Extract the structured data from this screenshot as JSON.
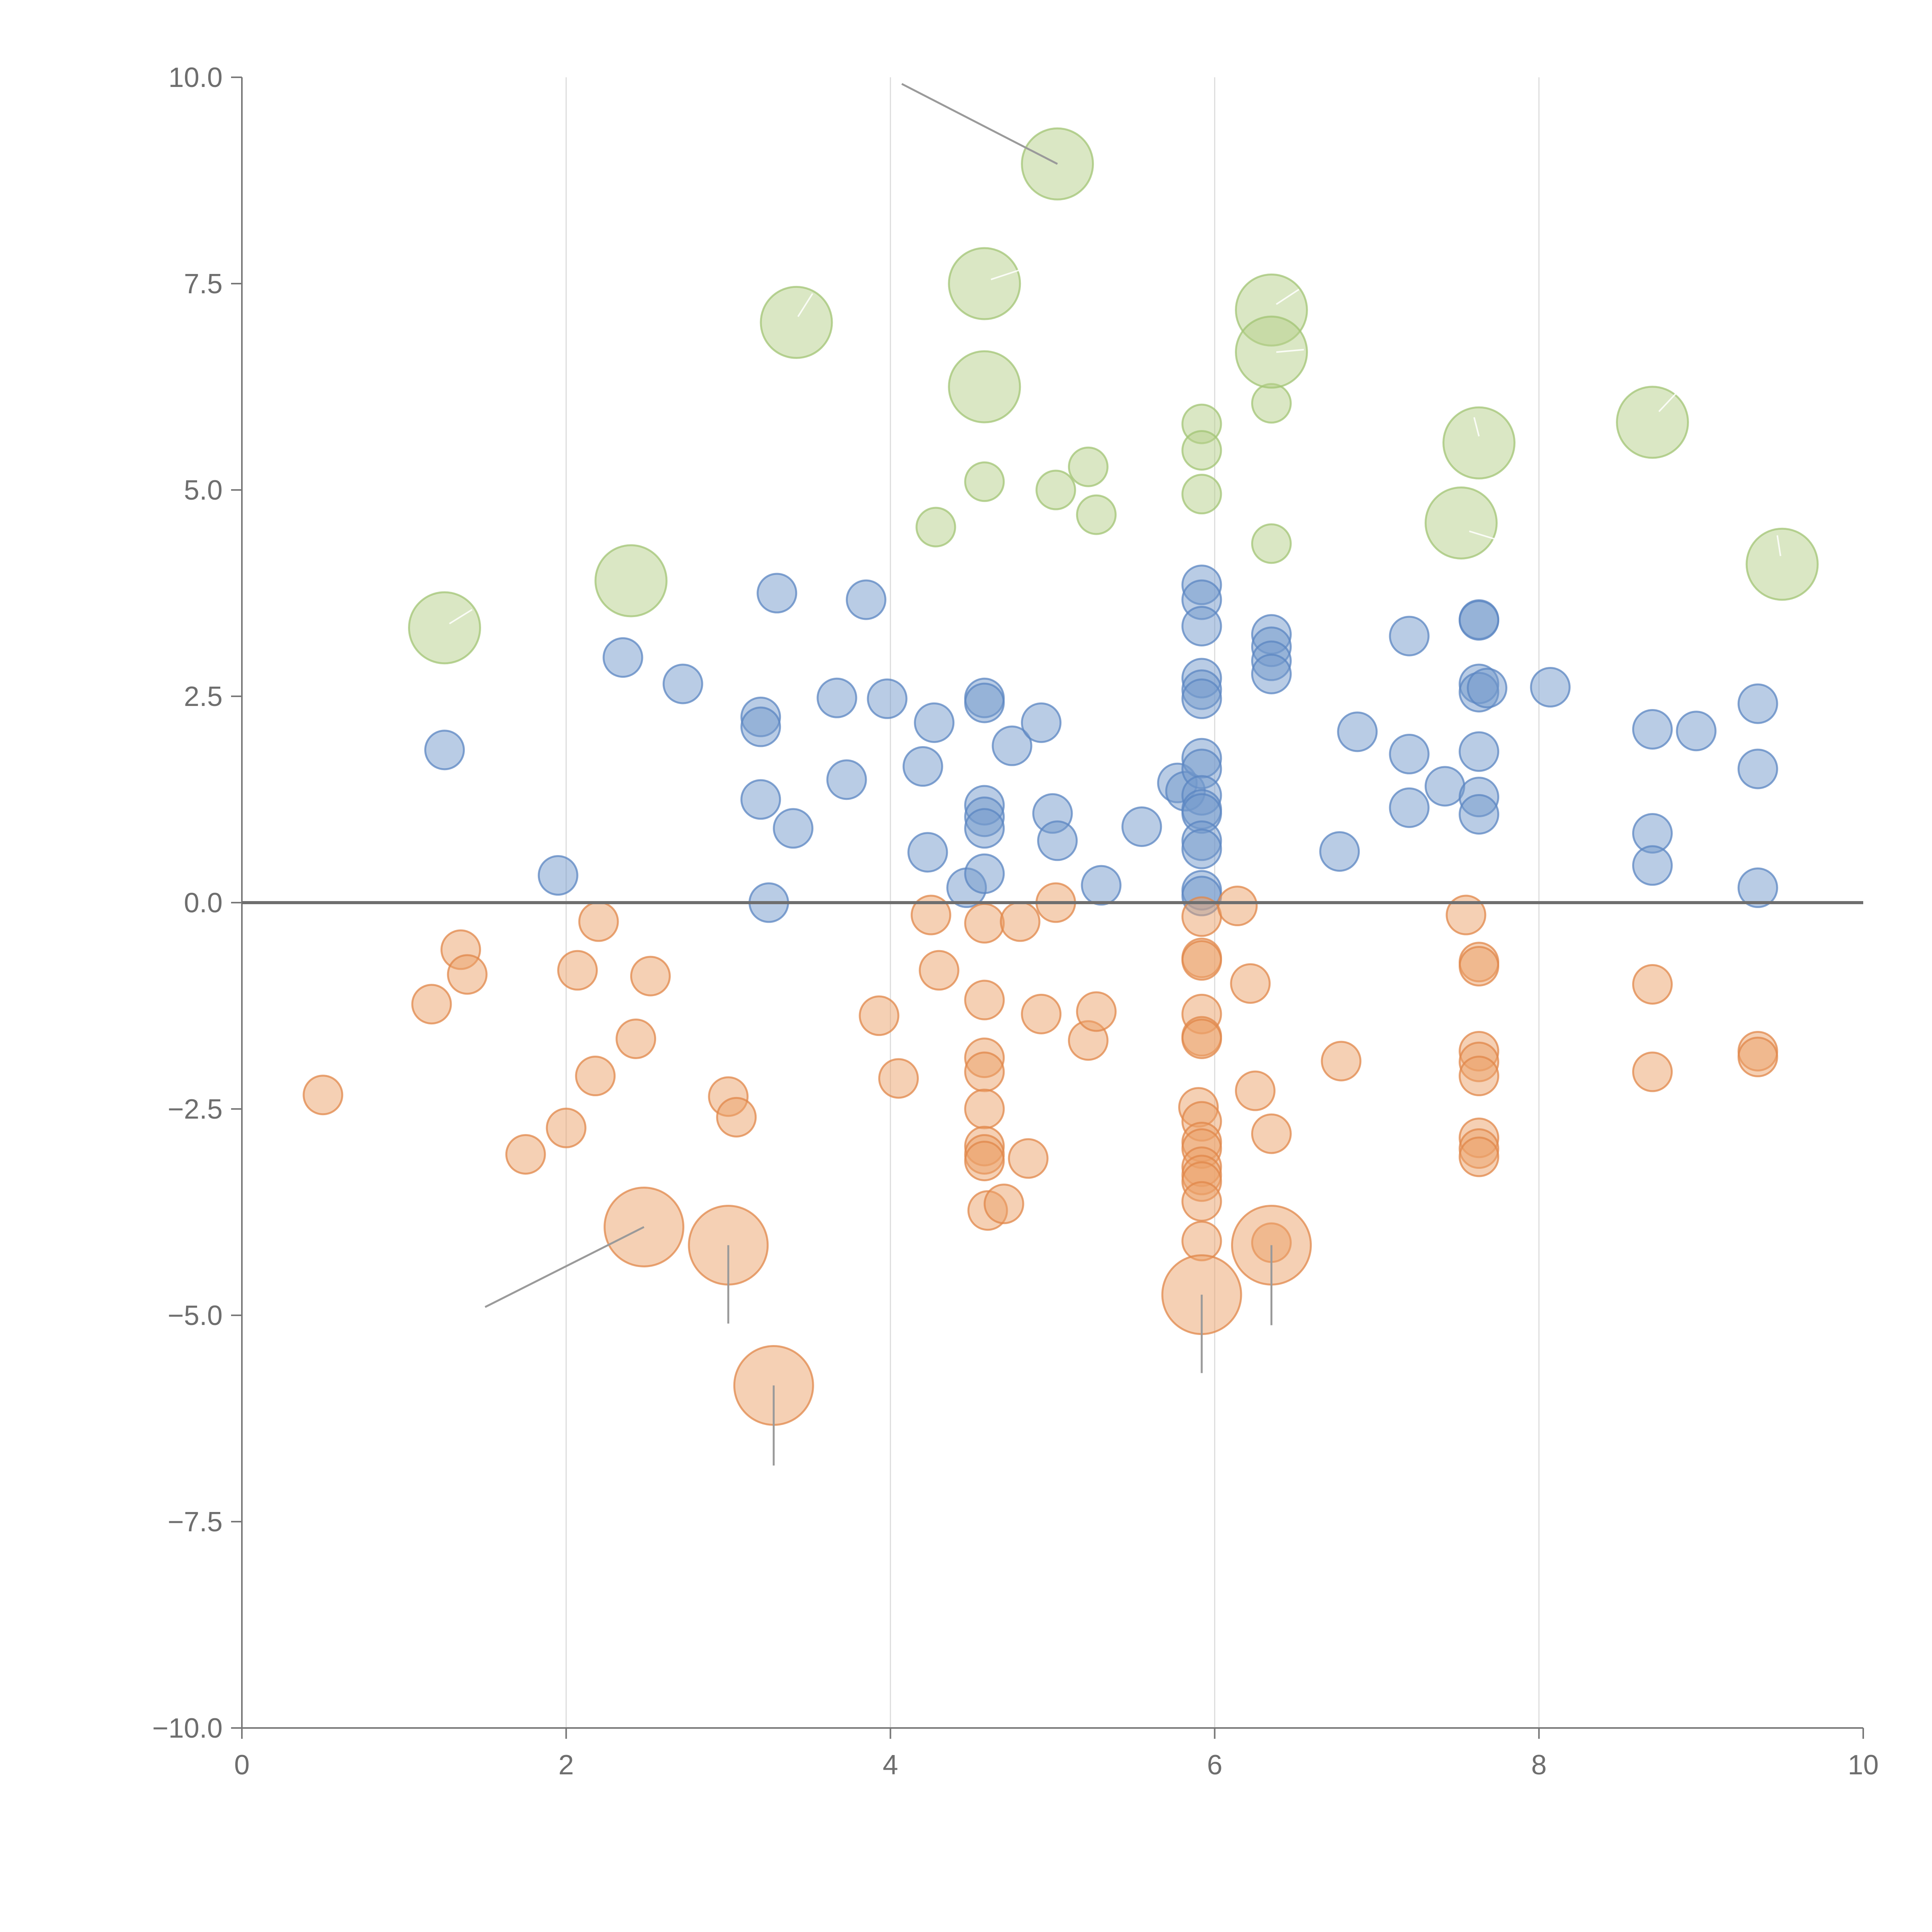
{
  "chart_data": {
    "type": "scatter",
    "title": "",
    "xlabel": "",
    "ylabel": "",
    "xlim": [
      0,
      10
    ],
    "ylim": [
      -10,
      10
    ],
    "x_ticks": [
      0,
      2,
      4,
      6,
      8,
      10
    ],
    "x_tick_labels": [
      "0",
      "2",
      "4",
      "6",
      "8",
      "10"
    ],
    "y_ticks": [
      10,
      7.5,
      5,
      2.5,
      0,
      -2.5,
      -5,
      -7.5,
      -10
    ],
    "y_tick_labels": [
      "10.0",
      "7.5",
      "5.0",
      "2.5",
      "0.0",
      "−2.5",
      "−5.0",
      "−7.5",
      "−10.0"
    ],
    "vertical_gridlines_at": [
      2,
      4,
      6,
      8
    ],
    "reference_line_y": 0,
    "colors": {
      "positive": "#7399cc",
      "positive_stroke": "#5b85c2",
      "negative": "#eba26a",
      "negative_stroke": "#e0874a",
      "highlight": "#b5d08a",
      "highlight_stroke": "#a2c474",
      "axis": "#777777",
      "grid": "#dddddd"
    },
    "series": [
      {
        "name": "positive",
        "color": "#7399cc",
        "points": [
          {
            "x": 1.25,
            "y": 1.85
          },
          {
            "x": 1.95,
            "y": 0.33
          },
          {
            "x": 2.35,
            "y": 2.97
          },
          {
            "x": 2.72,
            "y": 2.65
          },
          {
            "x": 3.2,
            "y": 2.25
          },
          {
            "x": 3.2,
            "y": 2.13
          },
          {
            "x": 3.2,
            "y": 1.25
          },
          {
            "x": 3.25,
            "y": 0.0
          },
          {
            "x": 3.3,
            "y": 3.75
          },
          {
            "x": 3.4,
            "y": 0.9
          },
          {
            "x": 3.67,
            "y": 2.48
          },
          {
            "x": 3.73,
            "y": 1.49
          },
          {
            "x": 3.85,
            "y": 3.67
          },
          {
            "x": 3.98,
            "y": 2.47
          },
          {
            "x": 4.2,
            "y": 1.65
          },
          {
            "x": 4.23,
            "y": 0.61
          },
          {
            "x": 4.27,
            "y": 2.18
          },
          {
            "x": 4.47,
            "y": 0.18
          },
          {
            "x": 4.58,
            "y": 2.48
          },
          {
            "x": 4.58,
            "y": 2.42
          },
          {
            "x": 4.58,
            "y": 1.18
          },
          {
            "x": 4.58,
            "y": 1.04
          },
          {
            "x": 4.58,
            "y": 0.9
          },
          {
            "x": 4.58,
            "y": 0.35
          },
          {
            "x": 4.75,
            "y": 1.9
          },
          {
            "x": 4.93,
            "y": 2.18
          },
          {
            "x": 5.0,
            "y": 1.08
          },
          {
            "x": 5.03,
            "y": 0.75
          },
          {
            "x": 5.3,
            "y": 0.21
          },
          {
            "x": 5.55,
            "y": 0.92
          },
          {
            "x": 5.77,
            "y": 1.45
          },
          {
            "x": 5.82,
            "y": 1.35
          },
          {
            "x": 5.92,
            "y": 3.85
          },
          {
            "x": 5.92,
            "y": 3.67
          },
          {
            "x": 5.92,
            "y": 3.35
          },
          {
            "x": 5.92,
            "y": 2.72
          },
          {
            "x": 5.92,
            "y": 2.58
          },
          {
            "x": 5.92,
            "y": 2.47
          },
          {
            "x": 5.92,
            "y": 1.75
          },
          {
            "x": 5.92,
            "y": 1.62
          },
          {
            "x": 5.92,
            "y": 1.3
          },
          {
            "x": 5.92,
            "y": 1.13
          },
          {
            "x": 5.92,
            "y": 1.08
          },
          {
            "x": 5.92,
            "y": 0.75
          },
          {
            "x": 5.92,
            "y": 0.65
          },
          {
            "x": 5.92,
            "y": 0.15
          },
          {
            "x": 5.92,
            "y": 0.08
          },
          {
            "x": 6.35,
            "y": 3.25
          },
          {
            "x": 6.35,
            "y": 3.1
          },
          {
            "x": 6.35,
            "y": 2.93
          },
          {
            "x": 6.35,
            "y": 2.77
          },
          {
            "x": 6.77,
            "y": 0.62
          },
          {
            "x": 6.88,
            "y": 2.07
          },
          {
            "x": 7.2,
            "y": 3.23
          },
          {
            "x": 7.2,
            "y": 1.8
          },
          {
            "x": 7.2,
            "y": 1.15
          },
          {
            "x": 7.42,
            "y": 1.41
          },
          {
            "x": 7.63,
            "y": 3.43
          },
          {
            "x": 7.63,
            "y": 3.42
          },
          {
            "x": 7.63,
            "y": 2.65
          },
          {
            "x": 7.63,
            "y": 2.55
          },
          {
            "x": 7.68,
            "y": 2.6
          },
          {
            "x": 7.63,
            "y": 1.83
          },
          {
            "x": 7.63,
            "y": 1.28
          },
          {
            "x": 7.63,
            "y": 1.07
          },
          {
            "x": 8.07,
            "y": 2.61
          },
          {
            "x": 8.7,
            "y": 2.1
          },
          {
            "x": 8.7,
            "y": 0.84
          },
          {
            "x": 8.7,
            "y": 0.45
          },
          {
            "x": 8.97,
            "y": 2.08
          },
          {
            "x": 9.35,
            "y": 2.41
          },
          {
            "x": 9.35,
            "y": 1.62
          },
          {
            "x": 9.35,
            "y": 0.18
          }
        ]
      },
      {
        "name": "negative",
        "color": "#eba26a",
        "points": [
          {
            "x": 0.5,
            "y": -2.33
          },
          {
            "x": 1.17,
            "y": -1.23
          },
          {
            "x": 1.35,
            "y": -0.57
          },
          {
            "x": 1.39,
            "y": -0.87
          },
          {
            "x": 1.75,
            "y": -3.05
          },
          {
            "x": 2.0,
            "y": -2.73
          },
          {
            "x": 2.07,
            "y": -0.82
          },
          {
            "x": 2.18,
            "y": -2.1
          },
          {
            "x": 2.2,
            "y": -0.23
          },
          {
            "x": 2.43,
            "y": -1.65
          },
          {
            "x": 2.52,
            "y": -0.89
          },
          {
            "x": 3.0,
            "y": -2.35
          },
          {
            "x": 3.05,
            "y": -2.6
          },
          {
            "x": 3.93,
            "y": -1.37
          },
          {
            "x": 4.05,
            "y": -2.13
          },
          {
            "x": 4.25,
            "y": -0.15
          },
          {
            "x": 4.3,
            "y": -0.82
          },
          {
            "x": 4.58,
            "y": -0.25
          },
          {
            "x": 4.58,
            "y": -1.18
          },
          {
            "x": 4.58,
            "y": -1.88
          },
          {
            "x": 4.58,
            "y": -2.05
          },
          {
            "x": 4.58,
            "y": -2.5
          },
          {
            "x": 4.58,
            "y": -2.95
          },
          {
            "x": 4.58,
            "y": -3.05
          },
          {
            "x": 4.58,
            "y": -3.13
          },
          {
            "x": 4.6,
            "y": -3.73
          },
          {
            "x": 4.7,
            "y": -3.65
          },
          {
            "x": 4.8,
            "y": -0.23
          },
          {
            "x": 4.85,
            "y": -3.1
          },
          {
            "x": 4.93,
            "y": -1.35
          },
          {
            "x": 5.02,
            "y": 0.0
          },
          {
            "x": 5.22,
            "y": -1.67
          },
          {
            "x": 5.27,
            "y": -1.32
          },
          {
            "x": 5.9,
            "y": -2.48
          },
          {
            "x": 5.92,
            "y": -0.17
          },
          {
            "x": 5.92,
            "y": -0.67
          },
          {
            "x": 5.92,
            "y": -0.7
          },
          {
            "x": 5.92,
            "y": -1.35
          },
          {
            "x": 5.92,
            "y": -1.62
          },
          {
            "x": 5.92,
            "y": -1.65
          },
          {
            "x": 5.92,
            "y": -2.65
          },
          {
            "x": 5.92,
            "y": -2.9
          },
          {
            "x": 5.92,
            "y": -2.98
          },
          {
            "x": 5.92,
            "y": -3.2
          },
          {
            "x": 5.92,
            "y": -3.3
          },
          {
            "x": 5.92,
            "y": -3.38
          },
          {
            "x": 5.92,
            "y": -3.62
          },
          {
            "x": 5.92,
            "y": -4.1
          },
          {
            "x": 6.14,
            "y": -0.04
          },
          {
            "x": 6.22,
            "y": -0.98
          },
          {
            "x": 6.25,
            "y": -2.28
          },
          {
            "x": 6.35,
            "y": -2.8
          },
          {
            "x": 6.35,
            "y": -4.12
          },
          {
            "x": 6.78,
            "y": -1.92
          },
          {
            "x": 7.55,
            "y": -0.15
          },
          {
            "x": 7.63,
            "y": -0.72
          },
          {
            "x": 7.63,
            "y": -0.77
          },
          {
            "x": 7.63,
            "y": -1.8
          },
          {
            "x": 7.63,
            "y": -1.93
          },
          {
            "x": 7.63,
            "y": -2.1
          },
          {
            "x": 7.63,
            "y": -2.85
          },
          {
            "x": 7.63,
            "y": -2.98
          },
          {
            "x": 7.63,
            "y": -3.08
          },
          {
            "x": 8.7,
            "y": -0.99
          },
          {
            "x": 8.7,
            "y": -2.05
          },
          {
            "x": 9.35,
            "y": -1.8
          },
          {
            "x": 9.35,
            "y": -1.87
          }
        ]
      },
      {
        "name": "highlight-positive",
        "color": "#b5d08a",
        "points": [
          {
            "x": 4.28,
            "y": 4.55
          },
          {
            "x": 4.58,
            "y": 5.1
          },
          {
            "x": 5.02,
            "y": 5.0
          },
          {
            "x": 5.22,
            "y": 5.28
          },
          {
            "x": 5.27,
            "y": 4.7
          },
          {
            "x": 5.92,
            "y": 5.8
          },
          {
            "x": 5.92,
            "y": 5.48
          },
          {
            "x": 5.92,
            "y": 4.95
          },
          {
            "x": 6.35,
            "y": 6.05
          },
          {
            "x": 6.35,
            "y": 4.35
          }
        ]
      },
      {
        "name": "large-positive",
        "color": "#b5d08a",
        "points": [
          {
            "x": 1.25,
            "y": 3.33
          },
          {
            "x": 2.4,
            "y": 3.9
          },
          {
            "x": 3.42,
            "y": 7.03
          },
          {
            "x": 4.58,
            "y": 7.5
          },
          {
            "x": 4.58,
            "y": 6.25
          },
          {
            "x": 5.03,
            "y": 8.95
          },
          {
            "x": 6.35,
            "y": 7.18
          },
          {
            "x": 6.35,
            "y": 6.67
          },
          {
            "x": 7.52,
            "y": 4.6
          },
          {
            "x": 7.63,
            "y": 5.57
          },
          {
            "x": 8.7,
            "y": 5.82
          },
          {
            "x": 9.5,
            "y": 4.1
          }
        ]
      },
      {
        "name": "large-negative",
        "color": "#eba26a",
        "points": [
          {
            "x": 2.48,
            "y": -3.93
          },
          {
            "x": 3.0,
            "y": -4.15
          },
          {
            "x": 3.28,
            "y": -5.85
          },
          {
            "x": 5.92,
            "y": -4.75
          },
          {
            "x": 6.35,
            "y": -4.15
          }
        ]
      }
    ],
    "leader_lines": [
      {
        "point": [
          5.03,
          8.95
        ],
        "to": [
          4.07,
          9.92
        ]
      },
      {
        "point": [
          2.48,
          -3.93
        ],
        "to": [
          1.5,
          -4.9
        ]
      },
      {
        "point": [
          3.0,
          -4.15
        ],
        "to": [
          3.0,
          -5.1
        ]
      },
      {
        "point": [
          3.28,
          -5.85
        ],
        "to": [
          3.28,
          -6.82
        ]
      },
      {
        "point": [
          5.92,
          -4.75
        ],
        "to": [
          5.92,
          -5.7
        ]
      },
      {
        "point": [
          6.35,
          -4.15
        ],
        "to": [
          6.35,
          -5.12
        ]
      }
    ],
    "inner_marks": [
      {
        "from": [
          1.28,
          3.38
        ],
        "to": [
          1.42,
          3.55
        ]
      },
      {
        "from": [
          3.43,
          7.1
        ],
        "to": [
          3.52,
          7.38
        ]
      },
      {
        "from": [
          4.62,
          7.55
        ],
        "to": [
          4.82,
          7.68
        ]
      },
      {
        "from": [
          6.38,
          7.25
        ],
        "to": [
          6.52,
          7.43
        ]
      },
      {
        "from": [
          6.38,
          6.67
        ],
        "to": [
          6.55,
          6.7
        ]
      },
      {
        "from": [
          7.57,
          4.5
        ],
        "to": [
          7.82,
          4.35
        ]
      },
      {
        "from": [
          7.63,
          5.65
        ],
        "to": [
          7.6,
          5.88
        ]
      },
      {
        "from": [
          8.74,
          5.95
        ],
        "to": [
          8.86,
          6.2
        ]
      },
      {
        "from": [
          9.49,
          4.2
        ],
        "to": [
          9.47,
          4.45
        ]
      }
    ]
  }
}
